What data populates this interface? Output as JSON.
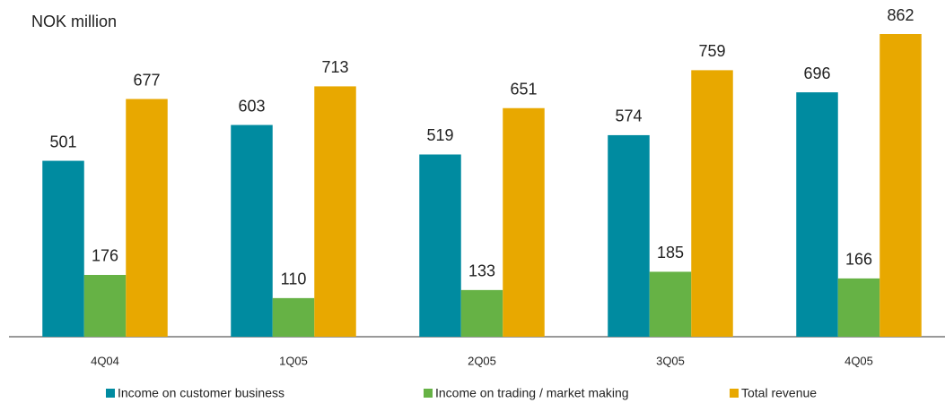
{
  "chart_data": {
    "type": "bar",
    "title": "NOK million",
    "categories": [
      "4Q04",
      "1Q05",
      "2Q05",
      "3Q05",
      "4Q05"
    ],
    "series": [
      {
        "name": "Income on customer business",
        "color": "#008ba0",
        "values": [
          501,
          603,
          519,
          574,
          696
        ]
      },
      {
        "name": "Income on trading / market making",
        "color": "#66b245",
        "values": [
          176,
          110,
          133,
          185,
          166
        ]
      },
      {
        "name": "Total revenue",
        "color": "#e8a800",
        "values": [
          677,
          713,
          651,
          759,
          862
        ]
      }
    ],
    "legend": "bottom"
  }
}
